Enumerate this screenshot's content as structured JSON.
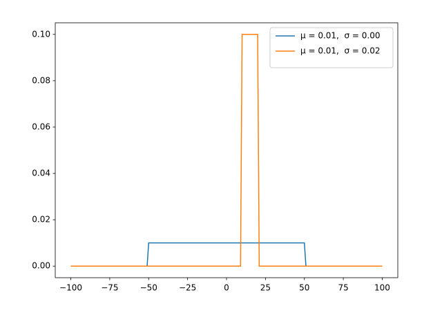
{
  "chart_data": {
    "type": "line",
    "series": [
      {
        "name": "μ = 0.01,  σ = 0.00",
        "color": "#1f77b4",
        "x": [
          -100,
          -51,
          -50,
          50,
          51,
          100
        ],
        "values": [
          0,
          0,
          0.01,
          0.01,
          0,
          0
        ]
      },
      {
        "name": "μ = 0.01,  σ = 0.02",
        "color": "#ff7f0e",
        "x": [
          -100,
          9,
          10,
          20,
          21,
          100
        ],
        "values": [
          0,
          0,
          0.1,
          0.1,
          0,
          0
        ]
      }
    ],
    "xlim": [
      -110,
      110
    ],
    "xticks": [
      {
        "value": -100,
        "label": "−100"
      },
      {
        "value": -75,
        "label": "−75"
      },
      {
        "value": -50,
        "label": "−50"
      },
      {
        "value": -25,
        "label": "−25"
      },
      0,
      25,
      50,
      75,
      100
    ],
    "ylim": [
      -0.005,
      0.105
    ],
    "yticks": [
      {
        "value": 0,
        "label": "0.00"
      },
      {
        "value": 0.02,
        "label": "0.02"
      },
      {
        "value": 0.04,
        "label": "0.04"
      },
      {
        "value": 0.06,
        "label": "0.06"
      },
      {
        "value": 0.08,
        "label": "0.08"
      },
      {
        "value": 0.1,
        "label": "0.10"
      }
    ],
    "legend": "upper right"
  }
}
